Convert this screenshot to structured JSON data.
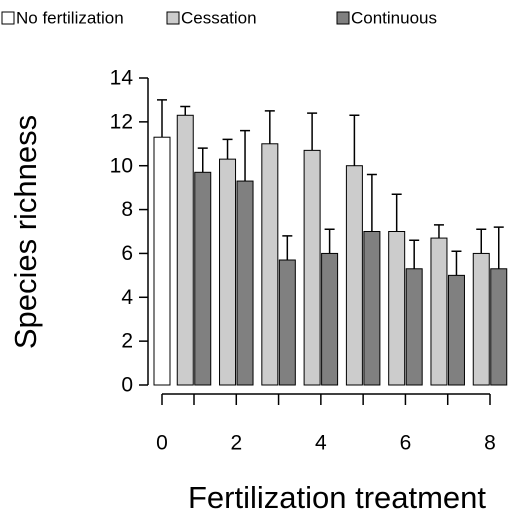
{
  "chart_data": {
    "type": "bar",
    "x_label": "Fertilization treatment",
    "y_label": "Species richness",
    "categories": [
      "0",
      null,
      "2",
      null,
      "4",
      null,
      "6",
      null,
      "8"
    ],
    "series": [
      {
        "name": "No fertilization",
        "color": "#ffffff",
        "values": [
          11.3,
          null,
          null,
          null,
          null,
          null,
          null,
          null,
          null
        ],
        "errors": [
          1.7,
          null,
          null,
          null,
          null,
          null,
          null,
          null,
          null
        ]
      },
      {
        "name": "Cessation",
        "color": "#cccccc",
        "values": [
          null,
          12.3,
          10.3,
          11,
          10.7,
          10,
          7,
          6.7,
          6
        ],
        "errors": [
          null,
          0.4,
          0.9,
          1.5,
          1.7,
          2.3,
          1.7,
          0.6,
          1.1
        ]
      },
      {
        "name": "Continuous",
        "color": "#808080",
        "values": [
          null,
          9.7,
          9.3,
          5.7,
          6,
          7,
          5.3,
          5,
          5.3
        ],
        "errors": [
          null,
          1.1,
          2.3,
          1.1,
          1.1,
          2.6,
          1.3,
          1.1,
          1.9
        ]
      }
    ],
    "ylim": [
      0,
      14
    ],
    "yticks": [
      0,
      2,
      4,
      6,
      8,
      10,
      12,
      14
    ],
    "legend": "top"
  }
}
